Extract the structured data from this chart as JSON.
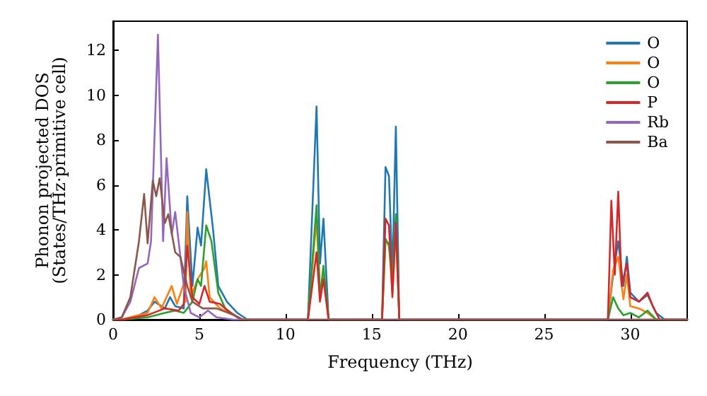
{
  "chart_data": {
    "type": "line",
    "xlabel": "Frequency (THz)",
    "ylabel": "Phonon projected DOS\n(States/THz·primitive cell)",
    "xlim": [
      0,
      33.3
    ],
    "xticks": [
      0,
      5,
      10,
      15,
      20,
      25,
      30
    ],
    "ylim": [
      0,
      13.3
    ],
    "yticks": [
      0,
      2,
      4,
      6,
      8,
      10,
      12
    ],
    "grid": false,
    "legend": "top right",
    "marker": "none",
    "line_style": "solid",
    "series": [
      {
        "name": "O",
        "color": "#1f77b4",
        "x": [
          0,
          0.5,
          1.5,
          2.0,
          2.4,
          3.0,
          3.3,
          3.6,
          4.1,
          4.3,
          4.6,
          4.9,
          5.1,
          5.4,
          5.8,
          6.1,
          6.6,
          7.2,
          7.8,
          11.3,
          11.8,
          12.0,
          12.2,
          12.5,
          15.6,
          15.8,
          16.0,
          16.2,
          16.4,
          16.6,
          28.7,
          29.0,
          29.3,
          29.6,
          29.8,
          30.0,
          30.5,
          31.0,
          31.5,
          32.0,
          33.3
        ],
        "values": [
          0,
          0,
          0.2,
          0.4,
          0.8,
          0.5,
          1.0,
          0.6,
          0.5,
          5.5,
          1.5,
          4.1,
          3.3,
          6.7,
          4.0,
          1.5,
          0.8,
          0.3,
          0,
          0,
          9.5,
          2.5,
          4.5,
          0,
          0,
          6.8,
          6.4,
          2.0,
          8.6,
          0,
          0,
          2.0,
          3.5,
          1.5,
          2.8,
          1.2,
          0.8,
          1.1,
          0.3,
          0,
          0
        ]
      },
      {
        "name": "O",
        "color": "#ff7f0e",
        "x": [
          0,
          0.5,
          2.0,
          2.4,
          2.8,
          3.4,
          3.7,
          4.1,
          4.2,
          4.3,
          4.5,
          4.9,
          5.3,
          5.4,
          5.6,
          6.2,
          7.0,
          7.5,
          11.3,
          11.8,
          12.0,
          12.2,
          12.5,
          15.6,
          15.8,
          16.0,
          16.2,
          16.4,
          16.6,
          28.7,
          29.0,
          29.3,
          29.6,
          29.8,
          30.0,
          30.5,
          31.0,
          31.5,
          33.3
        ],
        "values": [
          0,
          0,
          0.3,
          1.0,
          0.5,
          1.5,
          0.7,
          1.6,
          0.8,
          4.8,
          1.0,
          1.8,
          2.3,
          2.6,
          1.0,
          0.5,
          0.2,
          0,
          0,
          4.5,
          1.2,
          2.0,
          0,
          0,
          3.5,
          3.4,
          1.2,
          4.0,
          0,
          0,
          2.2,
          2.8,
          0.9,
          2.0,
          0.6,
          0.5,
          0.3,
          0,
          0
        ]
      },
      {
        "name": "O",
        "color": "#2ca02c",
        "x": [
          0,
          0.5,
          2.0,
          3.0,
          3.6,
          4.1,
          4.3,
          4.6,
          4.9,
          5.1,
          5.4,
          5.7,
          6.1,
          6.5,
          7.2,
          7.5,
          11.3,
          11.8,
          12.0,
          12.2,
          12.5,
          15.6,
          15.8,
          16.0,
          16.2,
          16.4,
          16.6,
          28.7,
          29.0,
          29.3,
          29.6,
          30.0,
          30.5,
          31.0,
          31.5,
          33.3
        ],
        "values": [
          0,
          0,
          0.1,
          0.3,
          0.4,
          0.3,
          0.5,
          0.8,
          1.8,
          1.5,
          4.2,
          3.5,
          1.2,
          0.5,
          0.1,
          0,
          0,
          5.1,
          1.0,
          2.4,
          0,
          0,
          3.6,
          3.3,
          1.8,
          4.7,
          0,
          0,
          1.0,
          0.5,
          0.2,
          0.3,
          0.1,
          0.4,
          0,
          0
        ]
      },
      {
        "name": "P",
        "color": "#d62728",
        "x": [
          0,
          0.5,
          2.0,
          3.0,
          3.8,
          4.1,
          4.3,
          4.6,
          5.0,
          5.3,
          5.6,
          6.2,
          6.8,
          7.5,
          11.3,
          11.8,
          12.0,
          12.2,
          12.5,
          15.6,
          15.8,
          16.0,
          16.2,
          16.4,
          16.6,
          28.7,
          28.9,
          29.1,
          29.3,
          29.5,
          29.8,
          30.0,
          30.5,
          31.0,
          31.3,
          31.7,
          33.3
        ],
        "values": [
          0,
          0,
          0.2,
          0.5,
          0.4,
          0.7,
          3.3,
          1.0,
          0.7,
          1.5,
          0.8,
          0.7,
          0.3,
          0,
          0,
          3.0,
          0.8,
          1.8,
          0,
          0,
          4.5,
          4.2,
          1.0,
          4.3,
          0,
          0,
          5.3,
          2.0,
          5.7,
          1.5,
          2.5,
          1.0,
          0.8,
          1.2,
          0.6,
          0,
          0
        ]
      },
      {
        "name": "Rb",
        "color": "#9467bd",
        "x": [
          0,
          0.5,
          1.0,
          1.5,
          2.0,
          2.2,
          2.6,
          2.9,
          3.1,
          3.4,
          3.6,
          4.1,
          4.5,
          5.0,
          5.5,
          6.0,
          7.0,
          33.3
        ],
        "values": [
          0,
          0.1,
          0.8,
          2.3,
          2.5,
          3.5,
          12.7,
          3.5,
          7.2,
          3.8,
          4.8,
          1.5,
          0.3,
          0.1,
          0.4,
          0.1,
          0,
          0
        ]
      },
      {
        "name": "Ba",
        "color": "#8c564b",
        "x": [
          0,
          0.5,
          1.0,
          1.5,
          1.8,
          2.0,
          2.3,
          2.5,
          2.7,
          3.0,
          3.2,
          3.6,
          3.9,
          4.3,
          4.6,
          5.2,
          6.0,
          7.0,
          7.5,
          33.3
        ],
        "values": [
          0,
          0.1,
          1.0,
          3.5,
          5.6,
          3.4,
          6.2,
          5.5,
          6.3,
          4.3,
          4.7,
          3.0,
          2.8,
          1.5,
          0.8,
          0.5,
          0.5,
          0.2,
          0,
          0
        ]
      }
    ]
  }
}
